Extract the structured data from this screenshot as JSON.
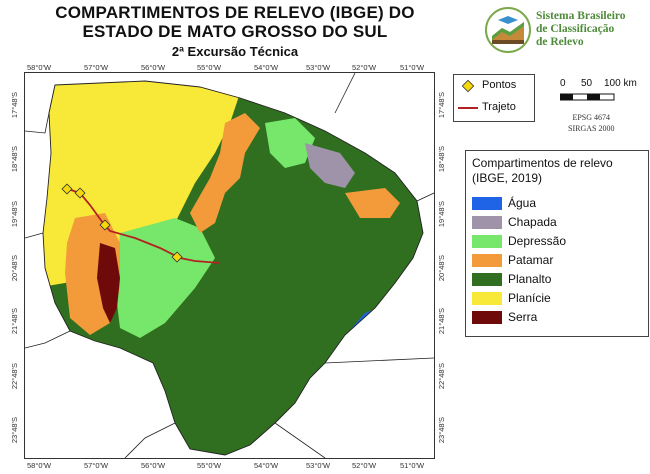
{
  "title": {
    "line1": "COMPARTIMENTOS DE RELEVO (IBGE) DO",
    "line2": "ESTADO DE MATO GROSSO DO SUL",
    "line3": "2ª Excursão Técnica"
  },
  "logo": {
    "line1": "Sistema Brasileiro",
    "line2": "de Classificação",
    "line3": "de Relevo"
  },
  "map": {
    "lon_ticks": [
      "58°0'W",
      "57°0'W",
      "56°0'W",
      "55°0'W",
      "54°0'W",
      "53°0'W",
      "52°0'W",
      "51°0'W"
    ],
    "lat_ticks": [
      "17°48'S",
      "18°48'S",
      "19°48'S",
      "20°48'S",
      "21°48'S",
      "22°48'S",
      "23°48'S"
    ]
  },
  "legend_points": {
    "points_label": "Pontos",
    "route_label": "Trajeto",
    "point_color": "#f5d90a",
    "route_color": "#b22222"
  },
  "scale": {
    "labels": [
      "0",
      "50",
      "100 km"
    ],
    "epsg": "EPSG 4674",
    "datum": "SIRGAS 2000"
  },
  "legend": {
    "title_line1": "Compartimentos de relevo",
    "title_line2": "(IBGE, 2019)",
    "items": [
      {
        "label": "Água",
        "color": "#1f64e6"
      },
      {
        "label": "Chapada",
        "color": "#9e93a8"
      },
      {
        "label": "Depressão",
        "color": "#77e76b"
      },
      {
        "label": "Patamar",
        "color": "#f39a3b"
      },
      {
        "label": "Planalto",
        "color": "#2f6f1f"
      },
      {
        "label": "Planície",
        "color": "#f8e838"
      },
      {
        "label": "Serra",
        "color": "#6e0a0a"
      }
    ]
  }
}
